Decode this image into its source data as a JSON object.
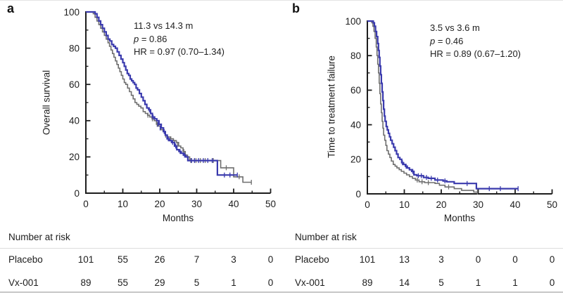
{
  "figure": {
    "background": "#ffffff",
    "top_rule_color": "#e3e3e3",
    "table_rule_color": "#dcdcdc",
    "bottom_rule_color": "#c6c6c6"
  },
  "colors": {
    "placebo": "#6f6f6f",
    "vx001": "#3a3aad",
    "axis": "#1d1d1d",
    "text": "#1d1d1d"
  },
  "chart_data": [
    {
      "type": "line",
      "subtype": "kaplan-meier-step",
      "panel_label": "a",
      "xlabel": "Months",
      "ylabel": "Overall survival",
      "xlim": [
        0,
        50
      ],
      "ylim": [
        0,
        100
      ],
      "x_ticks": [
        0,
        10,
        20,
        30,
        40,
        50
      ],
      "x_minor_ticks": [
        5,
        15,
        25,
        35,
        45
      ],
      "y_ticks": [
        0,
        20,
        40,
        60,
        80,
        100
      ],
      "y_minor_ticks": [
        10,
        30,
        50,
        70,
        90
      ],
      "grid": false,
      "legend": "none",
      "annotation": {
        "line1": "11.3 vs 14.3 m",
        "p_italic": "p",
        "p_rest": " = 0.86",
        "line3": "HR = 0.97 (0.70–1.34)"
      },
      "series": [
        {
          "name": "Placebo",
          "color_key": "placebo",
          "steps": [
            [
              0,
              100
            ],
            [
              2,
              99
            ],
            [
              2.5,
              97
            ],
            [
              3,
              95
            ],
            [
              3.5,
              93
            ],
            [
              4,
              91
            ],
            [
              4.5,
              89
            ],
            [
              5,
              87
            ],
            [
              5.5,
              85
            ],
            [
              6,
              83
            ],
            [
              6.4,
              81
            ],
            [
              6.8,
              79
            ],
            [
              7.2,
              77
            ],
            [
              7.6,
              75
            ],
            [
              8,
              73
            ],
            [
              8.4,
              71
            ],
            [
              8.8,
              69
            ],
            [
              9.2,
              67
            ],
            [
              9.6,
              65
            ],
            [
              10,
              63
            ],
            [
              10.4,
              61
            ],
            [
              10.8,
              60
            ],
            [
              11.3,
              58
            ],
            [
              11.8,
              56
            ],
            [
              12.3,
              54
            ],
            [
              12.8,
              52
            ],
            [
              13.3,
              50
            ],
            [
              13.8,
              49
            ],
            [
              14.3,
              48
            ],
            [
              14.9,
              47
            ],
            [
              15.5,
              45
            ],
            [
              16.1,
              44
            ],
            [
              16.7,
              43
            ],
            [
              17.3,
              42
            ],
            [
              17.9,
              41
            ],
            [
              18.5,
              40
            ],
            [
              19.1,
              38
            ],
            [
              19.7,
              37
            ],
            [
              20.3,
              35
            ],
            [
              20.9,
              34
            ],
            [
              21.5,
              32
            ],
            [
              22.1,
              31
            ],
            [
              22.9,
              30
            ],
            [
              23.7,
              29
            ],
            [
              24.5,
              28
            ],
            [
              25.1,
              26
            ],
            [
              25.7,
              25
            ],
            [
              26.3,
              23
            ],
            [
              26.9,
              21
            ],
            [
              27.5,
              20
            ],
            [
              28.1,
              18
            ],
            [
              36.5,
              14
            ],
            [
              40,
              9
            ],
            [
              42.5,
              6
            ],
            [
              44.8,
              6
            ]
          ],
          "censors": [
            [
              16.8,
              43
            ],
            [
              18,
              41
            ],
            [
              19.3,
              38
            ],
            [
              21.6,
              32
            ],
            [
              23,
              30
            ],
            [
              24,
              28
            ],
            [
              24.8,
              27
            ],
            [
              26.5,
              23
            ],
            [
              28.4,
              18
            ],
            [
              29.8,
              18
            ],
            [
              31,
              18
            ],
            [
              32.3,
              18
            ],
            [
              34.5,
              18
            ],
            [
              38,
              14
            ],
            [
              41.5,
              9
            ],
            [
              44.8,
              6
            ]
          ]
        },
        {
          "name": "Vx-001",
          "color_key": "vx001",
          "steps": [
            [
              0,
              100
            ],
            [
              2.5,
              99
            ],
            [
              3,
              97
            ],
            [
              3.5,
              95
            ],
            [
              4,
              93
            ],
            [
              4.5,
              91
            ],
            [
              5,
              89
            ],
            [
              5.5,
              87
            ],
            [
              6,
              85
            ],
            [
              6.5,
              84
            ],
            [
              7,
              82
            ],
            [
              7.5,
              81
            ],
            [
              8,
              80
            ],
            [
              8.5,
              78
            ],
            [
              9,
              76
            ],
            [
              9.5,
              74
            ],
            [
              10,
              72
            ],
            [
              10.4,
              70
            ],
            [
              10.8,
              68
            ],
            [
              11.2,
              66
            ],
            [
              11.6,
              65
            ],
            [
              12,
              63
            ],
            [
              12.4,
              62
            ],
            [
              12.8,
              61
            ],
            [
              13.2,
              60
            ],
            [
              13.6,
              58
            ],
            [
              14,
              57
            ],
            [
              14.5,
              55
            ],
            [
              15,
              53
            ],
            [
              15.5,
              51
            ],
            [
              16,
              49
            ],
            [
              16.5,
              47
            ],
            [
              17,
              46
            ],
            [
              17.5,
              44
            ],
            [
              18,
              42
            ],
            [
              18.6,
              41
            ],
            [
              19.2,
              40
            ],
            [
              19.8,
              38
            ],
            [
              20.4,
              36
            ],
            [
              21,
              34
            ],
            [
              21.5,
              32
            ],
            [
              22,
              30
            ],
            [
              22.6,
              29
            ],
            [
              23.2,
              28
            ],
            [
              24,
              26
            ],
            [
              24.6,
              24
            ],
            [
              25.2,
              23
            ],
            [
              25.8,
              22
            ],
            [
              26.4,
              21
            ],
            [
              27,
              20
            ],
            [
              27.6,
              18
            ],
            [
              35.6,
              10
            ],
            [
              41,
              10
            ]
          ],
          "censors": [
            [
              17.2,
              46
            ],
            [
              18.2,
              42
            ],
            [
              19.5,
              38
            ],
            [
              20.1,
              36
            ],
            [
              21.2,
              34
            ],
            [
              22.3,
              30
            ],
            [
              23.5,
              28
            ],
            [
              24.3,
              26
            ],
            [
              25.5,
              23
            ],
            [
              26.7,
              21
            ],
            [
              28.6,
              18
            ],
            [
              29.4,
              18
            ],
            [
              30.5,
              18
            ],
            [
              31.8,
              18
            ],
            [
              33,
              18
            ],
            [
              34.2,
              18
            ],
            [
              37.5,
              10
            ],
            [
              39,
              10
            ],
            [
              41,
              10
            ]
          ]
        }
      ],
      "risk_table": {
        "heading": "Number at risk",
        "columns_months": [
          0,
          10,
          20,
          30,
          40,
          50
        ],
        "rows": [
          {
            "label": "Placebo",
            "values": [
              101,
              55,
              26,
              7,
              3,
              0
            ]
          },
          {
            "label": "Vx-001",
            "values": [
              89,
              55,
              29,
              5,
              1,
              0
            ]
          }
        ]
      }
    },
    {
      "type": "line",
      "subtype": "kaplan-meier-step",
      "panel_label": "b",
      "xlabel": "Months",
      "ylabel": "Time to treatment failure",
      "xlim": [
        0,
        50
      ],
      "ylim": [
        0,
        100
      ],
      "x_ticks": [
        0,
        10,
        20,
        30,
        40,
        50
      ],
      "x_minor_ticks": [
        5,
        15,
        25,
        35,
        45
      ],
      "y_ticks": [
        0,
        20,
        40,
        60,
        80,
        100
      ],
      "y_minor_ticks": [
        10,
        30,
        50,
        70,
        90
      ],
      "grid": false,
      "legend": "none",
      "annotation": {
        "line1": "3.5 vs 3.6 m",
        "p_italic": "p",
        "p_rest": " = 0.46",
        "line3": "HR = 0.89 (0.67–1.20)"
      },
      "series": [
        {
          "name": "Placebo",
          "color_key": "placebo",
          "steps": [
            [
              0,
              100
            ],
            [
              1.2,
              99
            ],
            [
              1.5,
              97
            ],
            [
              1.8,
              94
            ],
            [
              2.1,
              90
            ],
            [
              2.4,
              85
            ],
            [
              2.6,
              80
            ],
            [
              2.8,
              75
            ],
            [
              3,
              70
            ],
            [
              3.2,
              64
            ],
            [
              3.4,
              58
            ],
            [
              3.6,
              52
            ],
            [
              3.8,
              47
            ],
            [
              4,
              42
            ],
            [
              4.2,
              38
            ],
            [
              4.4,
              34
            ],
            [
              4.7,
              31
            ],
            [
              5,
              28
            ],
            [
              5.3,
              25
            ],
            [
              5.7,
              23
            ],
            [
              6.1,
              21
            ],
            [
              6.5,
              19
            ],
            [
              7,
              17
            ],
            [
              7.5,
              16
            ],
            [
              8,
              15
            ],
            [
              8.6,
              14
            ],
            [
              9.2,
              13
            ],
            [
              9.9,
              12
            ],
            [
              10.6,
              11
            ],
            [
              11.4,
              10
            ],
            [
              12.2,
              9
            ],
            [
              13,
              8
            ],
            [
              14,
              7
            ],
            [
              15.5,
              6.5
            ],
            [
              18.3,
              6
            ],
            [
              19.5,
              5
            ],
            [
              21,
              4
            ],
            [
              23.5,
              3
            ],
            [
              25.5,
              2
            ],
            [
              28.8,
              1
            ],
            [
              29.8,
              1
            ]
          ],
          "censors": [
            [
              13.5,
              8
            ],
            [
              14.8,
              7
            ],
            [
              16.5,
              6.5
            ],
            [
              22,
              4
            ],
            [
              29.8,
              1
            ]
          ]
        },
        {
          "name": "Vx-001",
          "color_key": "vx001",
          "steps": [
            [
              0,
              100
            ],
            [
              1.6,
              99
            ],
            [
              1.9,
              97
            ],
            [
              2.2,
              94
            ],
            [
              2.5,
              91
            ],
            [
              2.8,
              87
            ],
            [
              3,
              83
            ],
            [
              3.2,
              79
            ],
            [
              3.4,
              74
            ],
            [
              3.6,
              69
            ],
            [
              3.8,
              64
            ],
            [
              4,
              59
            ],
            [
              4.2,
              54
            ],
            [
              4.4,
              49
            ],
            [
              4.6,
              45
            ],
            [
              4.8,
              42
            ],
            [
              5.1,
              39
            ],
            [
              5.4,
              37
            ],
            [
              5.7,
              35
            ],
            [
              6,
              33
            ],
            [
              6.3,
              31
            ],
            [
              6.7,
              29
            ],
            [
              7.1,
              27
            ],
            [
              7.5,
              25
            ],
            [
              7.9,
              23
            ],
            [
              8.3,
              21
            ],
            [
              8.8,
              20
            ],
            [
              9.3,
              18
            ],
            [
              9.8,
              17
            ],
            [
              10.3,
              16
            ],
            [
              10.8,
              15
            ],
            [
              11.4,
              14
            ],
            [
              12,
              13
            ],
            [
              12.6,
              11
            ],
            [
              13.4,
              10.5
            ],
            [
              15.2,
              9.5
            ],
            [
              16.5,
              9
            ],
            [
              18.3,
              8
            ],
            [
              20.5,
              7.5
            ],
            [
              21.5,
              7
            ],
            [
              23.5,
              6
            ],
            [
              29.5,
              3
            ],
            [
              40.8,
              3
            ]
          ],
          "censors": [
            [
              9.5,
              18
            ],
            [
              10.5,
              16
            ],
            [
              12.3,
              13
            ],
            [
              13.8,
              10.5
            ],
            [
              14.6,
              10.5
            ],
            [
              16,
              9.5
            ],
            [
              17.3,
              9
            ],
            [
              19,
              8
            ],
            [
              21,
              7.5
            ],
            [
              27,
              6
            ],
            [
              33,
              3
            ],
            [
              36,
              3
            ],
            [
              40.8,
              3
            ]
          ]
        }
      ],
      "risk_table": {
        "heading": "Number at risk",
        "columns_months": [
          0,
          10,
          20,
          30,
          40,
          50
        ],
        "rows": [
          {
            "label": "Placebo",
            "values": [
              101,
              13,
              3,
              0,
              0,
              0
            ]
          },
          {
            "label": "Vx-001",
            "values": [
              89,
              14,
              5,
              1,
              1,
              0
            ]
          }
        ]
      }
    }
  ]
}
